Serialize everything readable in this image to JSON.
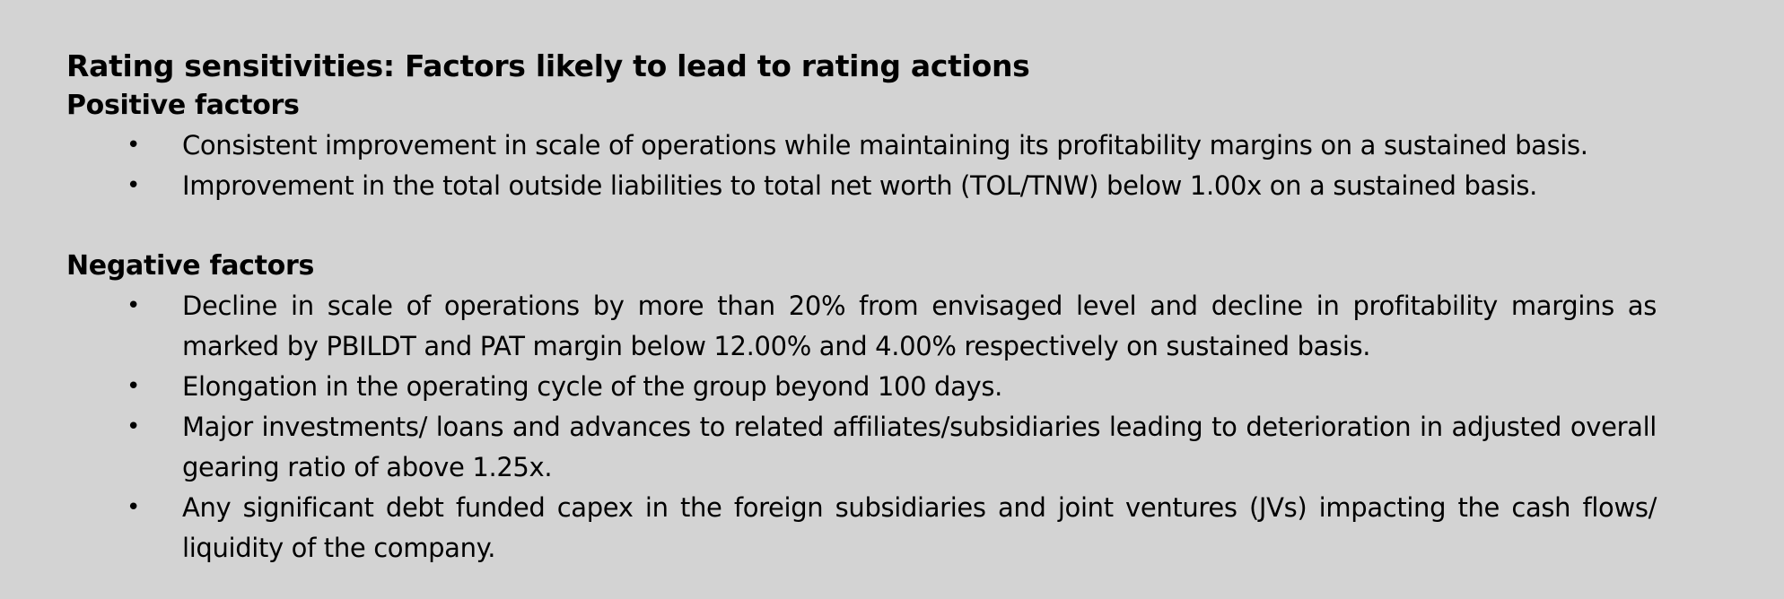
{
  "heading": "Rating sensitivities: Factors likely to lead to rating actions",
  "positive": {
    "title": "Positive factors",
    "items": [
      "Consistent improvement in scale of operations while maintaining its profitability margins on a sustained basis.",
      "Improvement in the total outside liabilities to total net worth (TOL/TNW) below 1.00x on a sustained basis."
    ]
  },
  "negative": {
    "title": "Negative factors",
    "items": [
      "Decline in scale of operations by more than 20% from envisaged level and decline in profitability margins as marked by PBILDT and PAT margin below 12.00% and 4.00% respectively on sustained basis.",
      "Elongation in the operating cycle of the group beyond 100 days.",
      "Major investments/ loans and advances to related affiliates/subsidiaries leading to deterioration in adjusted overall gearing ratio of above 1.25x.",
      "Any significant debt funded capex in the foreign subsidiaries and joint ventures (JVs) impacting the cash flows/ liquidity of the company."
    ]
  },
  "bullet_glyph": "•"
}
